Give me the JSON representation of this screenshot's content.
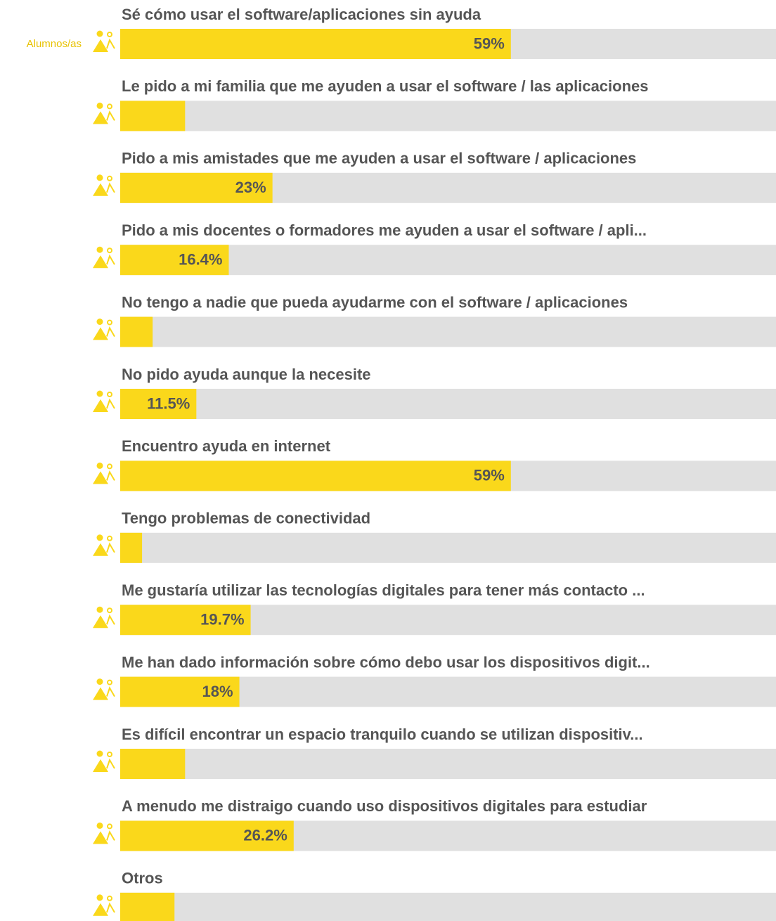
{
  "chart_data": {
    "type": "bar",
    "orientation": "horizontal",
    "categories": [
      "Sé cómo usar el software/aplicaciones sin ayuda",
      "Le pido a mi familia que me ayuden a usar el software / las aplicaciones",
      "Pido a mis amistades que me ayuden a usar el software / aplicaciones",
      "Pido a mis docentes o formadores me ayuden a usar el software / apli...",
      "No tengo a nadie que pueda ayudarme con el software / aplicaciones",
      "No pido ayuda aunque la necesite",
      "Encuentro ayuda en internet",
      "Tengo problemas de conectividad",
      "Me gustaría utilizar las tecnologías digitales para tener más contacto ...",
      "Me han dado información sobre cómo debo usar los dispositivos digit...",
      "Es difícil encontrar un espacio tranquilo cuando se utilizan dispositiv...",
      "A menudo me distraigo cuando uso dispositivos digitales para estudiar",
      "Otros"
    ],
    "series": [
      {
        "name": "Alumnos/as",
        "color": "#fad81b",
        "values": [
          59,
          9.8,
          23,
          16.4,
          4.9,
          11.5,
          59,
          3.3,
          19.7,
          18,
          9.8,
          26.2,
          8.2
        ],
        "value_labels": [
          "59%",
          null,
          "23%",
          "16.4%",
          null,
          "11.5%",
          "59%",
          null,
          "19.7%",
          "18%",
          null,
          "26.2%",
          null
        ]
      }
    ],
    "xlim": [
      0,
      100
    ]
  }
}
